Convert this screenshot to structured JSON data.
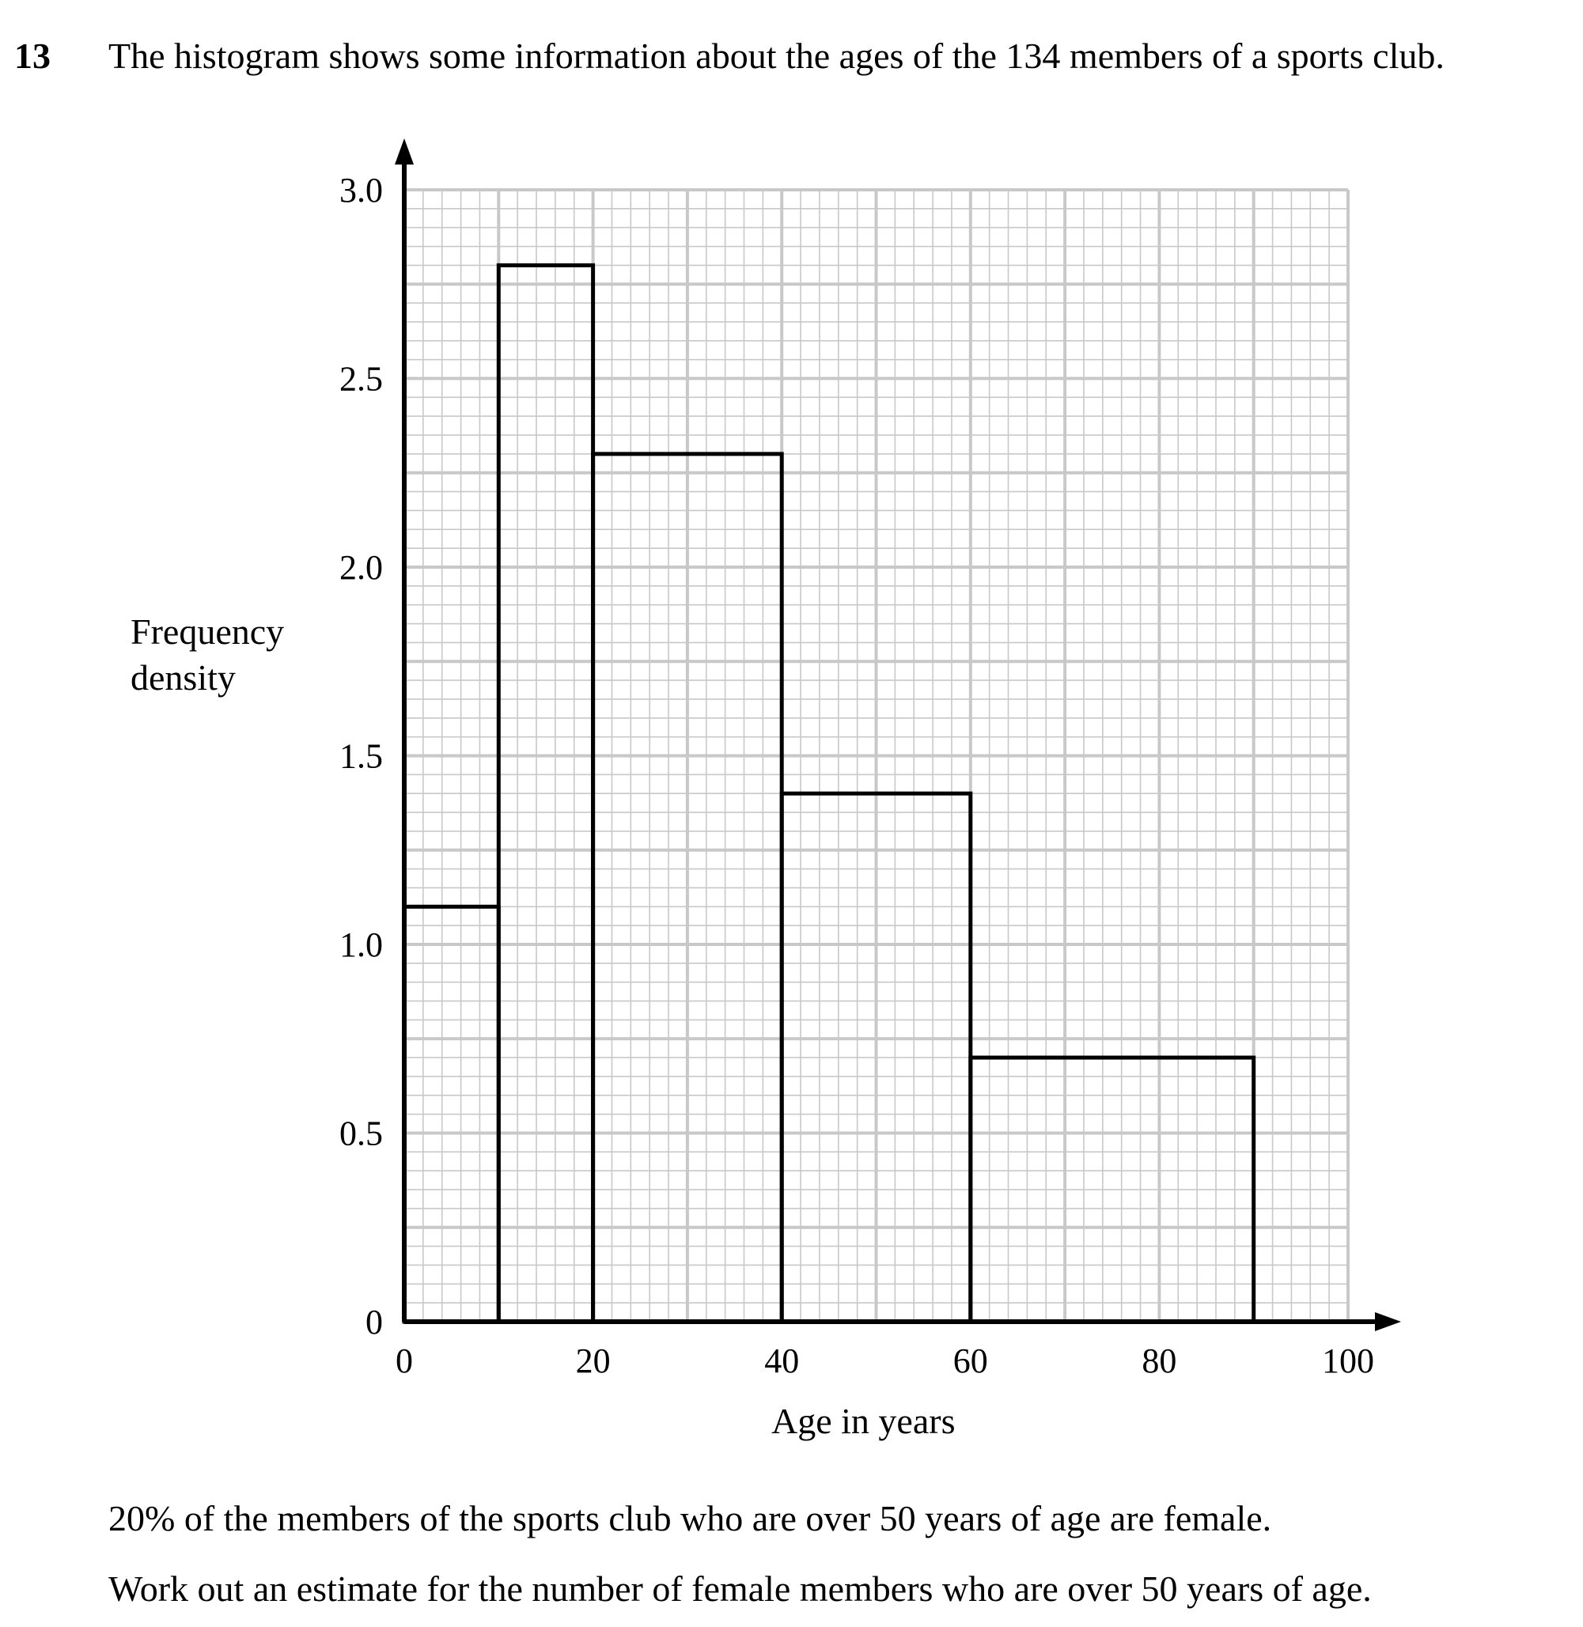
{
  "question": {
    "number": "13",
    "intro": "The histogram shows some information about the ages of the 134 members of a sports club."
  },
  "chart_data": {
    "type": "bar",
    "subtype": "histogram",
    "xlabel": "Age in years",
    "ylabel_lines": [
      "Frequency",
      "density"
    ],
    "xlim": [
      0,
      100
    ],
    "ylim": [
      0,
      3.0
    ],
    "x_ticks": [
      "0",
      "20",
      "40",
      "60",
      "80",
      "100"
    ],
    "y_ticks": [
      "0",
      "0.5",
      "1.0",
      "1.5",
      "2.0",
      "2.5",
      "3.0"
    ],
    "grid": true,
    "bins": [
      {
        "from": 0,
        "to": 10,
        "value": 1.1
      },
      {
        "from": 10,
        "to": 20,
        "value": 2.8
      },
      {
        "from": 20,
        "to": 40,
        "value": 2.3
      },
      {
        "from": 40,
        "to": 60,
        "value": 1.4
      },
      {
        "from": 60,
        "to": 90,
        "value": 0.7
      }
    ]
  },
  "paragraphs": [
    "20% of the members of the sports club who are over 50 years of age are female.",
    "Work out an estimate for the number of female members who are over 50 years of age."
  ]
}
